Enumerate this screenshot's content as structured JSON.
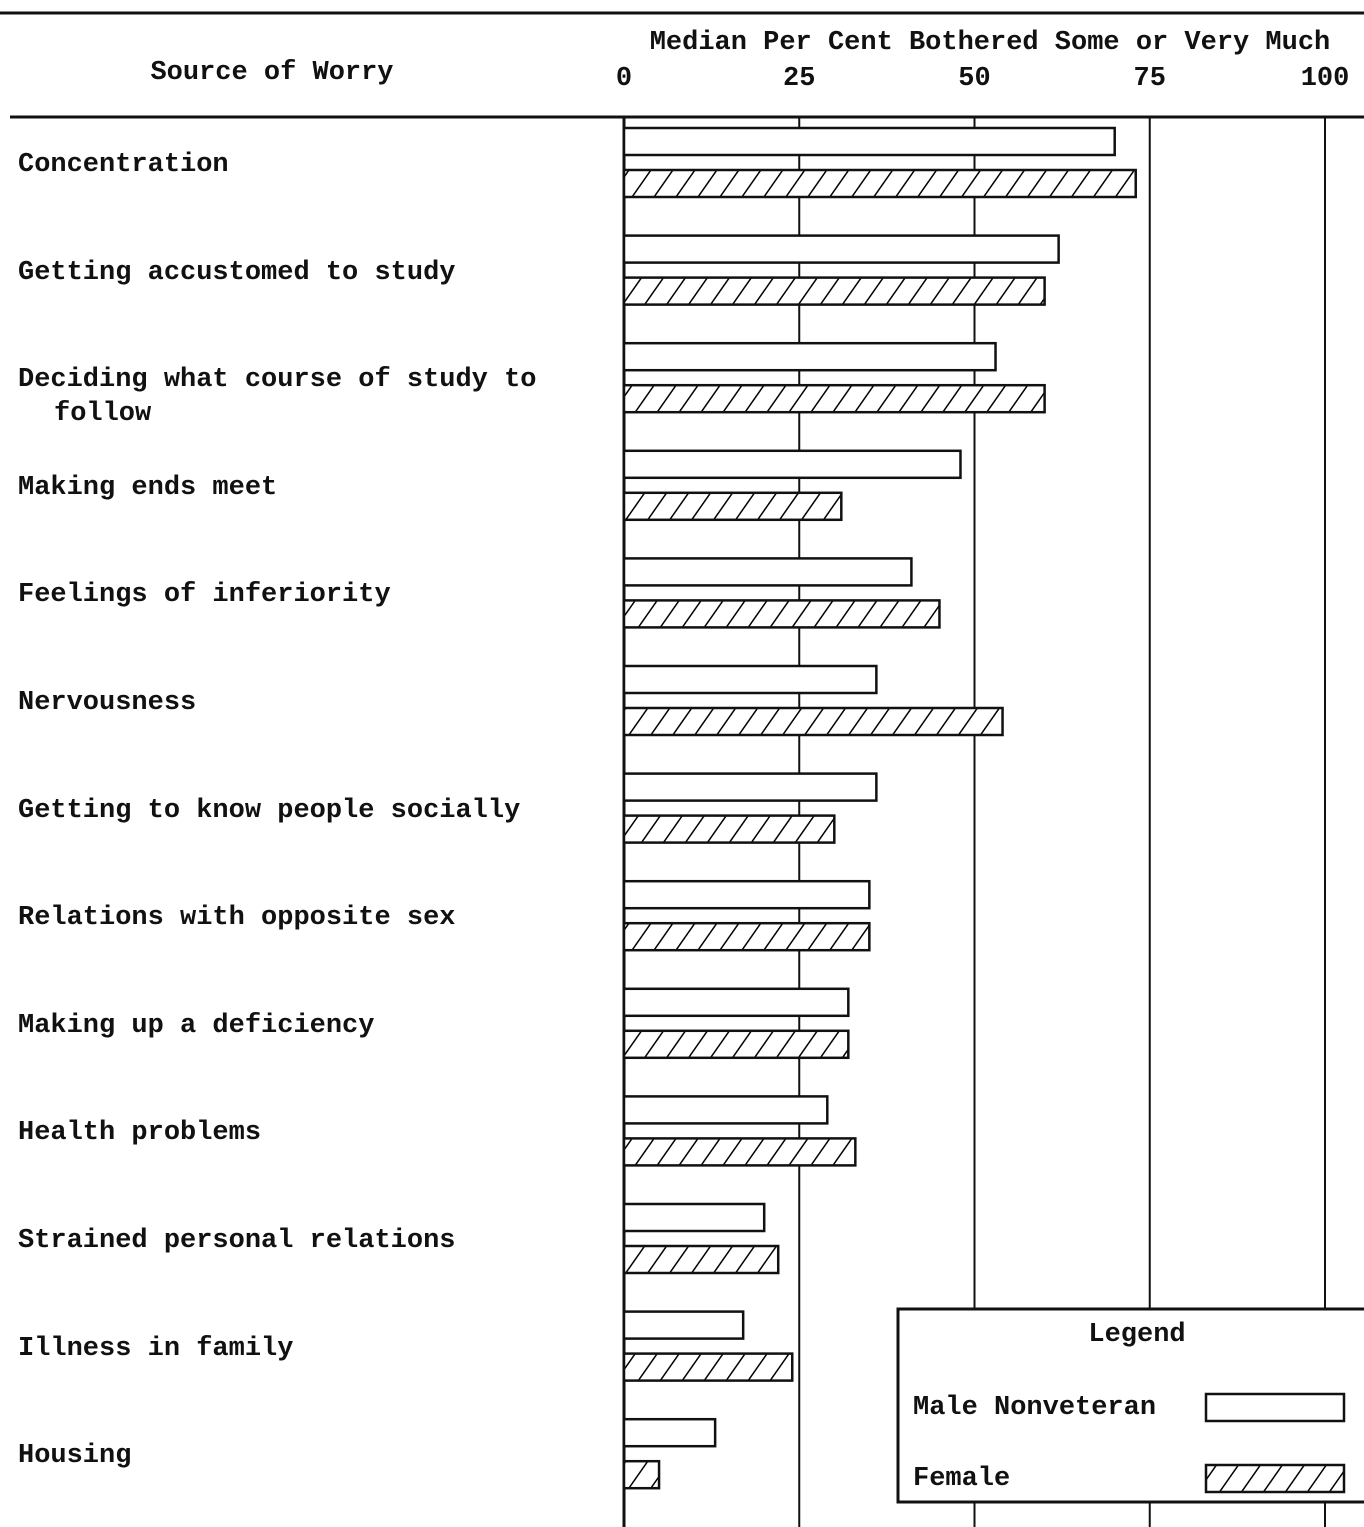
{
  "chart_data": {
    "type": "bar",
    "orientation": "horizontal",
    "category_header": "Source of Worry",
    "x_label": "Median Per Cent Bothered Some or Very Much",
    "categories": [
      "Concentration",
      "Getting accustomed to study",
      "Deciding what course of study to follow",
      "Making ends meet",
      "Feelings of inferiority",
      "Nervousness",
      "Getting to know people socially",
      "Relations with opposite sex",
      "Making up a deficiency",
      "Health problems",
      "Strained personal relations",
      "Illness in family",
      "Housing"
    ],
    "series": [
      {
        "name": "Male Nonveteran",
        "color": "#ffffff",
        "hatch": false,
        "values": [
          70,
          62,
          53,
          48,
          41,
          36,
          36,
          35,
          32,
          29,
          20,
          17,
          13
        ]
      },
      {
        "name": "Female",
        "color": "#000000",
        "hatch": true,
        "values": [
          73,
          60,
          60,
          31,
          45,
          54,
          30,
          35,
          32,
          33,
          22,
          24,
          5
        ]
      }
    ],
    "xlim": [
      0,
      100
    ],
    "xticks": [
      0,
      25,
      50,
      75,
      100
    ],
    "grid": true,
    "legend_title": "Legend",
    "legend_position": "lower right"
  }
}
